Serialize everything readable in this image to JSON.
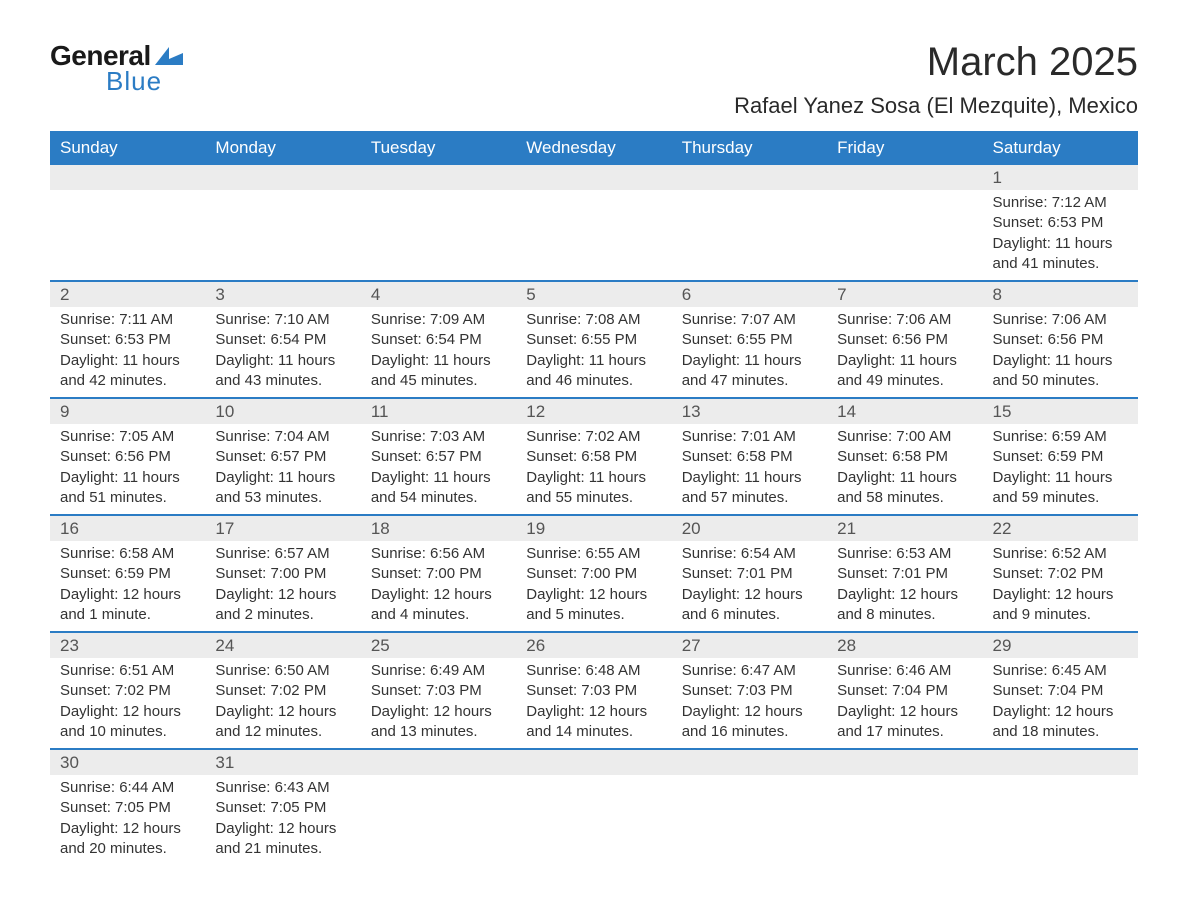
{
  "logo": {
    "textGeneral": "General",
    "textBlue": "Blue",
    "iconColor": "#2b7cc4"
  },
  "header": {
    "month": "March 2025",
    "location": "Rafael Yanez Sosa (El Mezquite), Mexico"
  },
  "colors": {
    "headerBg": "#2b7cc4",
    "headerText": "#ffffff",
    "daynumBg": "#ececec",
    "borderTop": "#2b7cc4",
    "textDark": "#333333",
    "textMuted": "#555555"
  },
  "dayNames": [
    "Sunday",
    "Monday",
    "Tuesday",
    "Wednesday",
    "Thursday",
    "Friday",
    "Saturday"
  ],
  "weeks": [
    {
      "nums": [
        "",
        "",
        "",
        "",
        "",
        "",
        "1"
      ],
      "cells": [
        null,
        null,
        null,
        null,
        null,
        null,
        {
          "sunrise": "Sunrise: 7:12 AM",
          "sunset": "Sunset: 6:53 PM",
          "daylight1": "Daylight: 11 hours",
          "daylight2": "and 41 minutes."
        }
      ]
    },
    {
      "nums": [
        "2",
        "3",
        "4",
        "5",
        "6",
        "7",
        "8"
      ],
      "cells": [
        {
          "sunrise": "Sunrise: 7:11 AM",
          "sunset": "Sunset: 6:53 PM",
          "daylight1": "Daylight: 11 hours",
          "daylight2": "and 42 minutes."
        },
        {
          "sunrise": "Sunrise: 7:10 AM",
          "sunset": "Sunset: 6:54 PM",
          "daylight1": "Daylight: 11 hours",
          "daylight2": "and 43 minutes."
        },
        {
          "sunrise": "Sunrise: 7:09 AM",
          "sunset": "Sunset: 6:54 PM",
          "daylight1": "Daylight: 11 hours",
          "daylight2": "and 45 minutes."
        },
        {
          "sunrise": "Sunrise: 7:08 AM",
          "sunset": "Sunset: 6:55 PM",
          "daylight1": "Daylight: 11 hours",
          "daylight2": "and 46 minutes."
        },
        {
          "sunrise": "Sunrise: 7:07 AM",
          "sunset": "Sunset: 6:55 PM",
          "daylight1": "Daylight: 11 hours",
          "daylight2": "and 47 minutes."
        },
        {
          "sunrise": "Sunrise: 7:06 AM",
          "sunset": "Sunset: 6:56 PM",
          "daylight1": "Daylight: 11 hours",
          "daylight2": "and 49 minutes."
        },
        {
          "sunrise": "Sunrise: 7:06 AM",
          "sunset": "Sunset: 6:56 PM",
          "daylight1": "Daylight: 11 hours",
          "daylight2": "and 50 minutes."
        }
      ]
    },
    {
      "nums": [
        "9",
        "10",
        "11",
        "12",
        "13",
        "14",
        "15"
      ],
      "cells": [
        {
          "sunrise": "Sunrise: 7:05 AM",
          "sunset": "Sunset: 6:56 PM",
          "daylight1": "Daylight: 11 hours",
          "daylight2": "and 51 minutes."
        },
        {
          "sunrise": "Sunrise: 7:04 AM",
          "sunset": "Sunset: 6:57 PM",
          "daylight1": "Daylight: 11 hours",
          "daylight2": "and 53 minutes."
        },
        {
          "sunrise": "Sunrise: 7:03 AM",
          "sunset": "Sunset: 6:57 PM",
          "daylight1": "Daylight: 11 hours",
          "daylight2": "and 54 minutes."
        },
        {
          "sunrise": "Sunrise: 7:02 AM",
          "sunset": "Sunset: 6:58 PM",
          "daylight1": "Daylight: 11 hours",
          "daylight2": "and 55 minutes."
        },
        {
          "sunrise": "Sunrise: 7:01 AM",
          "sunset": "Sunset: 6:58 PM",
          "daylight1": "Daylight: 11 hours",
          "daylight2": "and 57 minutes."
        },
        {
          "sunrise": "Sunrise: 7:00 AM",
          "sunset": "Sunset: 6:58 PM",
          "daylight1": "Daylight: 11 hours",
          "daylight2": "and 58 minutes."
        },
        {
          "sunrise": "Sunrise: 6:59 AM",
          "sunset": "Sunset: 6:59 PM",
          "daylight1": "Daylight: 11 hours",
          "daylight2": "and 59 minutes."
        }
      ]
    },
    {
      "nums": [
        "16",
        "17",
        "18",
        "19",
        "20",
        "21",
        "22"
      ],
      "cells": [
        {
          "sunrise": "Sunrise: 6:58 AM",
          "sunset": "Sunset: 6:59 PM",
          "daylight1": "Daylight: 12 hours",
          "daylight2": "and 1 minute."
        },
        {
          "sunrise": "Sunrise: 6:57 AM",
          "sunset": "Sunset: 7:00 PM",
          "daylight1": "Daylight: 12 hours",
          "daylight2": "and 2 minutes."
        },
        {
          "sunrise": "Sunrise: 6:56 AM",
          "sunset": "Sunset: 7:00 PM",
          "daylight1": "Daylight: 12 hours",
          "daylight2": "and 4 minutes."
        },
        {
          "sunrise": "Sunrise: 6:55 AM",
          "sunset": "Sunset: 7:00 PM",
          "daylight1": "Daylight: 12 hours",
          "daylight2": "and 5 minutes."
        },
        {
          "sunrise": "Sunrise: 6:54 AM",
          "sunset": "Sunset: 7:01 PM",
          "daylight1": "Daylight: 12 hours",
          "daylight2": "and 6 minutes."
        },
        {
          "sunrise": "Sunrise: 6:53 AM",
          "sunset": "Sunset: 7:01 PM",
          "daylight1": "Daylight: 12 hours",
          "daylight2": "and 8 minutes."
        },
        {
          "sunrise": "Sunrise: 6:52 AM",
          "sunset": "Sunset: 7:02 PM",
          "daylight1": "Daylight: 12 hours",
          "daylight2": "and 9 minutes."
        }
      ]
    },
    {
      "nums": [
        "23",
        "24",
        "25",
        "26",
        "27",
        "28",
        "29"
      ],
      "cells": [
        {
          "sunrise": "Sunrise: 6:51 AM",
          "sunset": "Sunset: 7:02 PM",
          "daylight1": "Daylight: 12 hours",
          "daylight2": "and 10 minutes."
        },
        {
          "sunrise": "Sunrise: 6:50 AM",
          "sunset": "Sunset: 7:02 PM",
          "daylight1": "Daylight: 12 hours",
          "daylight2": "and 12 minutes."
        },
        {
          "sunrise": "Sunrise: 6:49 AM",
          "sunset": "Sunset: 7:03 PM",
          "daylight1": "Daylight: 12 hours",
          "daylight2": "and 13 minutes."
        },
        {
          "sunrise": "Sunrise: 6:48 AM",
          "sunset": "Sunset: 7:03 PM",
          "daylight1": "Daylight: 12 hours",
          "daylight2": "and 14 minutes."
        },
        {
          "sunrise": "Sunrise: 6:47 AM",
          "sunset": "Sunset: 7:03 PM",
          "daylight1": "Daylight: 12 hours",
          "daylight2": "and 16 minutes."
        },
        {
          "sunrise": "Sunrise: 6:46 AM",
          "sunset": "Sunset: 7:04 PM",
          "daylight1": "Daylight: 12 hours",
          "daylight2": "and 17 minutes."
        },
        {
          "sunrise": "Sunrise: 6:45 AM",
          "sunset": "Sunset: 7:04 PM",
          "daylight1": "Daylight: 12 hours",
          "daylight2": "and 18 minutes."
        }
      ]
    },
    {
      "nums": [
        "30",
        "31",
        "",
        "",
        "",
        "",
        ""
      ],
      "cells": [
        {
          "sunrise": "Sunrise: 6:44 AM",
          "sunset": "Sunset: 7:05 PM",
          "daylight1": "Daylight: 12 hours",
          "daylight2": "and 20 minutes."
        },
        {
          "sunrise": "Sunrise: 6:43 AM",
          "sunset": "Sunset: 7:05 PM",
          "daylight1": "Daylight: 12 hours",
          "daylight2": "and 21 minutes."
        },
        null,
        null,
        null,
        null,
        null
      ]
    }
  ]
}
